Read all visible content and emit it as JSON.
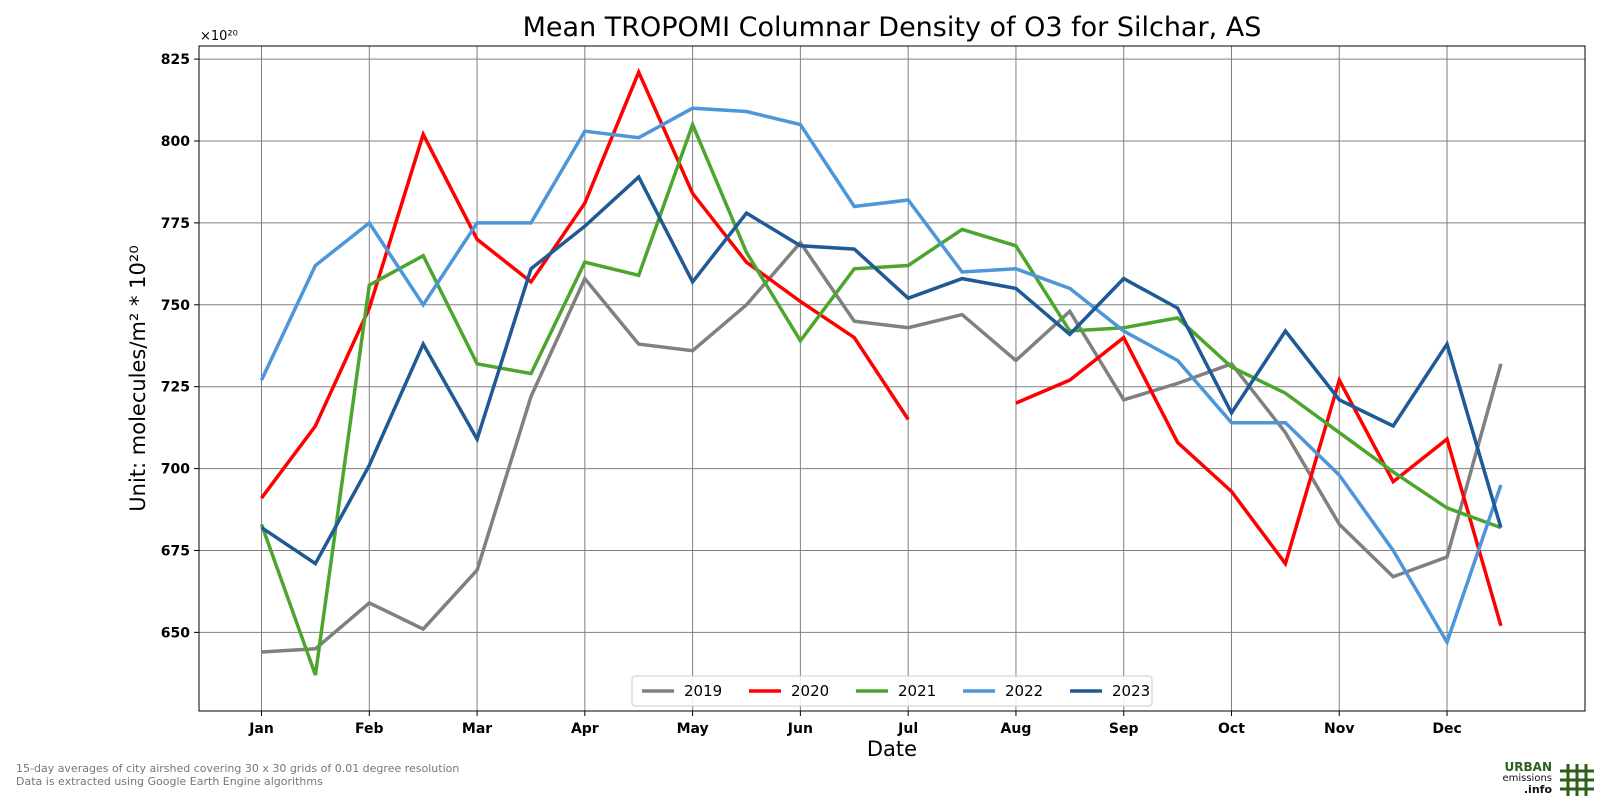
{
  "chart_data": {
    "type": "line",
    "title": "Mean TROPOMI Columnar Density of O3 for Silchar, AS",
    "xlabel": "Date",
    "ylabel": "Unit: molecules/m² * 10²⁰",
    "offset_label": "×10²⁰",
    "ylim": [
      626,
      829
    ],
    "yticks": [
      650,
      675,
      700,
      725,
      750,
      775,
      800,
      825
    ],
    "xlim": [
      -0.58,
      12.28
    ],
    "xtick_positions": [
      0,
      1,
      2,
      3,
      4,
      5,
      6,
      7,
      8,
      9,
      10,
      11
    ],
    "xtick_labels": [
      "Jan",
      "Feb",
      "Mar",
      "Apr",
      "May",
      "Jun",
      "Jul",
      "Aug",
      "Sep",
      "Oct",
      "Nov",
      "Dec"
    ],
    "grid": true,
    "legend_position": "bottom-center",
    "x": [
      0,
      0.5,
      1,
      1.5,
      2,
      2.5,
      3,
      3.5,
      4,
      4.5,
      5,
      5.5,
      6,
      6.5,
      7,
      7.5,
      8,
      8.5,
      9,
      9.5,
      10,
      10.5,
      11,
      11.5
    ],
    "series": [
      {
        "name": "2019",
        "color": "#808080",
        "values": [
          644,
          645,
          659,
          651,
          669,
          722,
          758,
          738,
          736,
          750,
          769,
          745,
          743,
          747,
          733,
          748,
          721,
          726,
          732,
          711,
          683,
          667,
          673,
          732
        ]
      },
      {
        "name": "2020",
        "color": "#ff0000",
        "values": [
          691,
          713,
          749,
          802,
          770,
          757,
          781,
          821,
          784,
          763,
          751,
          740,
          715,
          null,
          720,
          727,
          740,
          708,
          693,
          671,
          727,
          696,
          709,
          652
        ]
      },
      {
        "name": "2021",
        "color": "#4ca62e",
        "values": [
          683,
          637,
          756,
          765,
          732,
          729,
          763,
          759,
          805,
          766,
          739,
          761,
          762,
          773,
          768,
          742,
          743,
          746,
          731,
          723,
          711,
          699,
          688,
          682
        ]
      },
      {
        "name": "2022",
        "color": "#4c96d9",
        "values": [
          727,
          762,
          775,
          750,
          775,
          775,
          803,
          801,
          810,
          809,
          805,
          780,
          782,
          760,
          761,
          755,
          742,
          733,
          714,
          714,
          698,
          675,
          647,
          695
        ]
      },
      {
        "name": "2023",
        "color": "#1f5a96",
        "values": [
          682,
          671,
          701,
          738,
          709,
          761,
          774,
          789,
          757,
          778,
          768,
          767,
          752,
          758,
          755,
          741,
          758,
          749,
          717,
          742,
          721,
          713,
          738,
          682
        ]
      }
    ]
  },
  "footnote": {
    "line1": "15-day averages of city airshed covering 30 x 30 grids of 0.01 degree resolution",
    "line2": "Data is extracted using Google Earth Engine algorithms"
  },
  "logo": {
    "line1": "URBAN",
    "line2": "emissions",
    "line3": ".info"
  }
}
